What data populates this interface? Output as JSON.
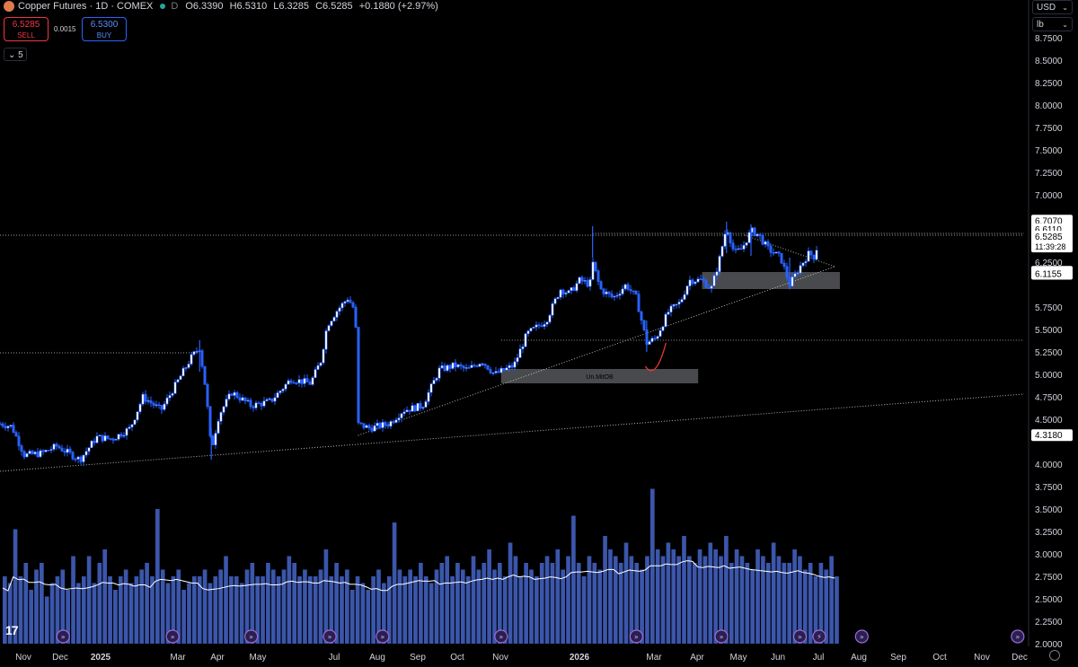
{
  "header": {
    "title": "Copper Futures · 1D · COMEX",
    "interval_badge": "D",
    "open": "O6.3390",
    "high": "H6.5310",
    "low": "L6.3285",
    "close": "C6.5285",
    "change": "+0.1880 (+2.97%)"
  },
  "trade": {
    "sell_price": "6.5285",
    "sell_label": "SELL",
    "spread": "0.0015",
    "buy_price": "6.5300",
    "buy_label": "BUY"
  },
  "indicators_toggle": "5",
  "currency": "USD",
  "unit": "lb",
  "icons": [
    "copper-logo-icon",
    "status-dot-icon",
    "chevron-down-icon",
    "tradingview-logo-icon",
    "settings-icon",
    "event-flag-icon",
    "lightning-icon"
  ],
  "colors": {
    "bg": "#000000",
    "candle": "#2962ff",
    "candle_up_body": "#ffffff",
    "volume": "#4a6bd6",
    "sell": "#f23645",
    "buy": "#2962ff",
    "accent_red": "#e53935"
  },
  "chart_data": {
    "type": "candlestick",
    "interval": "1D",
    "y_axis": {
      "ticks": [
        "8.7500",
        "8.5000",
        "8.2500",
        "8.0000",
        "7.7500",
        "7.5000",
        "7.2500",
        "7.0000",
        "6.2500",
        "5.7500",
        "5.5000",
        "5.2500",
        "5.0000",
        "4.7500",
        "4.5000",
        "4.0000",
        "3.7500",
        "3.5000",
        "3.2500",
        "3.0000",
        "2.7500",
        "2.5000",
        "2.2500",
        "2.0000"
      ],
      "range": [
        2.0,
        8.8
      ]
    },
    "x_axis": {
      "labels": [
        "Nov",
        "Dec",
        "2025",
        "Mar",
        "Apr",
        "May",
        "Jul",
        "Aug",
        "Sep",
        "Oct",
        "Nov",
        "2026",
        "Mar",
        "Apr",
        "May",
        "Jun",
        "Jul",
        "Aug",
        "Sep",
        "Oct",
        "Nov",
        "Dec"
      ],
      "bold": [
        "2025",
        "2026"
      ]
    },
    "price_tags": [
      {
        "value": "6.7070",
        "price": 6.707
      },
      {
        "value": "6.6110",
        "price": 6.611
      },
      {
        "value": "6.5285",
        "price": 6.5285,
        "sub": "11:39:28",
        "current": true
      },
      {
        "value": "6.1370",
        "price": 6.137
      },
      {
        "value": "6.1155",
        "price": 6.1155
      },
      {
        "value": "4.3180",
        "price": 4.318
      }
    ],
    "close_path": [
      [
        "2024-10-27",
        4.45
      ],
      [
        "2024-11-05",
        4.42
      ],
      [
        "2024-11-15",
        4.1
      ],
      [
        "2024-11-28",
        4.12
      ],
      [
        "2024-12-10",
        4.2
      ],
      [
        "2024-12-28",
        4.05
      ],
      [
        "2025-01-10",
        4.3
      ],
      [
        "2025-01-22",
        4.28
      ],
      [
        "2025-02-05",
        4.4
      ],
      [
        "2025-02-15",
        4.75
      ],
      [
        "2025-03-01",
        4.6
      ],
      [
        "2025-03-15",
        4.95
      ],
      [
        "2025-03-25",
        5.2
      ],
      [
        "2025-03-31",
        5.3
      ],
      [
        "2025-04-05",
        4.8
      ],
      [
        "2025-04-09",
        4.15
      ],
      [
        "2025-04-15",
        4.55
      ],
      [
        "2025-04-25",
        4.8
      ],
      [
        "2025-05-10",
        4.65
      ],
      [
        "2025-05-25",
        4.7
      ],
      [
        "2025-06-10",
        4.95
      ],
      [
        "2025-06-25",
        4.9
      ],
      [
        "2025-07-03",
        5.15
      ],
      [
        "2025-07-08",
        5.55
      ],
      [
        "2025-07-15",
        5.7
      ],
      [
        "2025-07-24",
        5.85
      ],
      [
        "2025-07-30",
        5.7
      ],
      [
        "2025-07-31",
        4.45
      ],
      [
        "2025-08-10",
        4.4
      ],
      [
        "2025-08-25",
        4.45
      ],
      [
        "2025-09-05",
        4.6
      ],
      [
        "2025-09-20",
        4.65
      ],
      [
        "2025-10-03",
        5.05
      ],
      [
        "2025-10-15",
        5.1
      ],
      [
        "2025-10-25",
        5.05
      ],
      [
        "2025-11-05",
        5.15
      ],
      [
        "2025-11-15",
        5.0
      ],
      [
        "2025-11-30",
        5.1
      ],
      [
        "2025-12-10",
        5.45
      ],
      [
        "2025-12-25",
        5.6
      ],
      [
        "2026-01-05",
        5.95
      ],
      [
        "2026-01-12",
        5.9
      ],
      [
        "2026-01-20",
        6.05
      ],
      [
        "2026-01-28",
        6.0
      ],
      [
        "2026-01-30",
        6.25
      ],
      [
        "2026-02-05",
        5.95
      ],
      [
        "2026-02-15",
        5.85
      ],
      [
        "2026-02-25",
        6.0
      ],
      [
        "2026-03-05",
        5.85
      ],
      [
        "2026-03-13",
        5.35
      ],
      [
        "2026-03-20",
        5.4
      ],
      [
        "2026-03-30",
        5.7
      ],
      [
        "2026-04-08",
        5.8
      ],
      [
        "2026-04-15",
        6.05
      ],
      [
        "2026-04-25",
        6.05
      ],
      [
        "2026-05-02",
        5.95
      ],
      [
        "2026-05-08",
        6.25
      ],
      [
        "2026-05-14",
        6.65
      ],
      [
        "2026-05-20",
        6.35
      ],
      [
        "2026-05-26",
        6.4
      ],
      [
        "2026-06-02",
        6.6
      ],
      [
        "2026-06-08",
        6.55
      ],
      [
        "2026-06-15",
        6.4
      ],
      [
        "2026-06-25",
        6.3
      ],
      [
        "2026-07-02",
        6.0
      ],
      [
        "2026-07-10",
        6.2
      ],
      [
        "2026-07-17",
        6.35
      ],
      [
        "2026-07-22",
        6.3
      ],
      [
        "2026-07-24",
        6.5285
      ]
    ],
    "spikes": [
      [
        "2025-03-31",
        5.38,
        "high"
      ],
      [
        "2025-04-09",
        4.05,
        "low"
      ],
      [
        "2026-01-30",
        6.65,
        "high"
      ],
      [
        "2026-03-13",
        5.25,
        "low"
      ],
      [
        "2026-05-14",
        6.7,
        "high"
      ],
      [
        "2026-06-02",
        6.67,
        "high"
      ],
      [
        "2026-07-02",
        5.95,
        "low"
      ]
    ],
    "volume": {
      "axis_range": [
        0,
        3.4
      ],
      "bars": [
        1.0,
        0.9,
        1.7,
        1.0,
        1.2,
        0.8,
        1.1,
        1.2,
        0.7,
        0.9,
        1.0,
        1.1,
        0.8,
        1.3,
        0.9,
        1.0,
        1.3,
        0.9,
        1.2,
        1.4,
        1.0,
        0.8,
        1.0,
        1.1,
        0.9,
        1.0,
        1.1,
        1.2,
        1.0,
        2.0,
        1.1,
        0.9,
        1.0,
        1.1,
        0.8,
        0.9,
        1.0,
        1.0,
        1.1,
        0.9,
        1.0,
        1.1,
        1.3,
        1.0,
        1.0,
        0.9,
        1.1,
        1.2,
        1.0,
        1.0,
        1.2,
        1.1,
        1.0,
        1.1,
        1.3,
        1.2,
        1.0,
        1.1,
        1.0,
        1.0,
        1.1,
        1.4,
        1.0,
        1.2,
        1.0,
        1.1,
        0.8,
        1.0,
        0.9,
        0.8,
        1.0,
        1.1,
        0.9,
        1.0,
        1.8,
        1.1,
        1.0,
        1.1,
        1.0,
        1.2,
        1.0,
        0.9,
        1.1,
        1.2,
        1.3,
        1.0,
        1.2,
        1.1,
        1.0,
        1.3,
        1.1,
        1.2,
        1.4,
        1.1,
        1.2,
        1.0,
        1.5,
        1.3,
        1.0,
        1.2,
        1.1,
        1.0,
        1.2,
        1.3,
        1.2,
        1.4,
        1.1,
        1.3,
        1.9,
        1.2,
        1.0,
        1.3,
        1.2,
        1.1,
        1.6,
        1.4,
        1.3,
        1.2,
        1.5,
        1.3,
        1.2,
        1.1,
        1.3,
        2.3,
        1.4,
        1.3,
        1.5,
        1.4,
        1.3,
        1.6,
        1.3,
        1.2,
        1.4,
        1.3,
        1.5,
        1.4,
        1.3,
        1.6,
        1.2,
        1.4,
        1.3,
        1.2,
        1.1,
        1.4,
        1.3,
        1.2,
        1.5,
        1.3,
        1.2,
        1.2,
        1.4,
        1.3,
        1.1,
        1.2,
        1.0,
        1.2,
        1.1,
        1.3,
        1.0
      ]
    },
    "drawings": {
      "horizontal_lines": [
        {
          "price": 6.55,
          "from": "2024-10-27",
          "to": "2026-12-31",
          "style": "dotted"
        },
        {
          "price": 5.38,
          "from": "2025-11-20",
          "to": "2026-12-31",
          "style": "dotted"
        },
        {
          "price": 5.24,
          "from": "2024-10-27",
          "to": "2025-03-31",
          "style": "dotted"
        }
      ],
      "trend_lines": [
        {
          "from": [
            "2024-10-27",
            3.92
          ],
          "to": [
            "2026-12-31",
            4.78
          ]
        },
        {
          "from": [
            "2025-08-01",
            4.32
          ],
          "to": [
            "2026-08-06",
            6.2
          ]
        },
        {
          "from": [
            "2026-05-28",
            6.55
          ],
          "to": [
            "2026-08-06",
            6.2
          ]
        },
        {
          "from": [
            "2026-01-30",
            6.57
          ],
          "to": [
            "2026-12-31",
            6.57
          ]
        }
      ],
      "zones": [
        {
          "label": "Un.MitOB",
          "from": "2025-11-20",
          "to": "2026-04-22",
          "top": 5.06,
          "bottom": 4.9
        },
        {
          "label": "",
          "from": "2026-04-25",
          "to": "2026-08-10",
          "top": 6.14,
          "bottom": 5.95
        }
      ],
      "marker_curve": [
        [
          "2026-03-12",
          5.15
        ],
        [
          "2026-03-20",
          5.12
        ],
        [
          "2026-03-28",
          5.35
        ]
      ]
    },
    "event_markers": [
      "2024-12-15",
      "2025-03-10",
      "2025-05-10",
      "2025-07-10",
      "2025-08-20",
      "2025-11-20",
      "2026-03-05",
      "2026-05-10",
      "2026-07-10",
      "2026-07-25",
      "2026-08-27",
      "2026-12-26"
    ]
  }
}
